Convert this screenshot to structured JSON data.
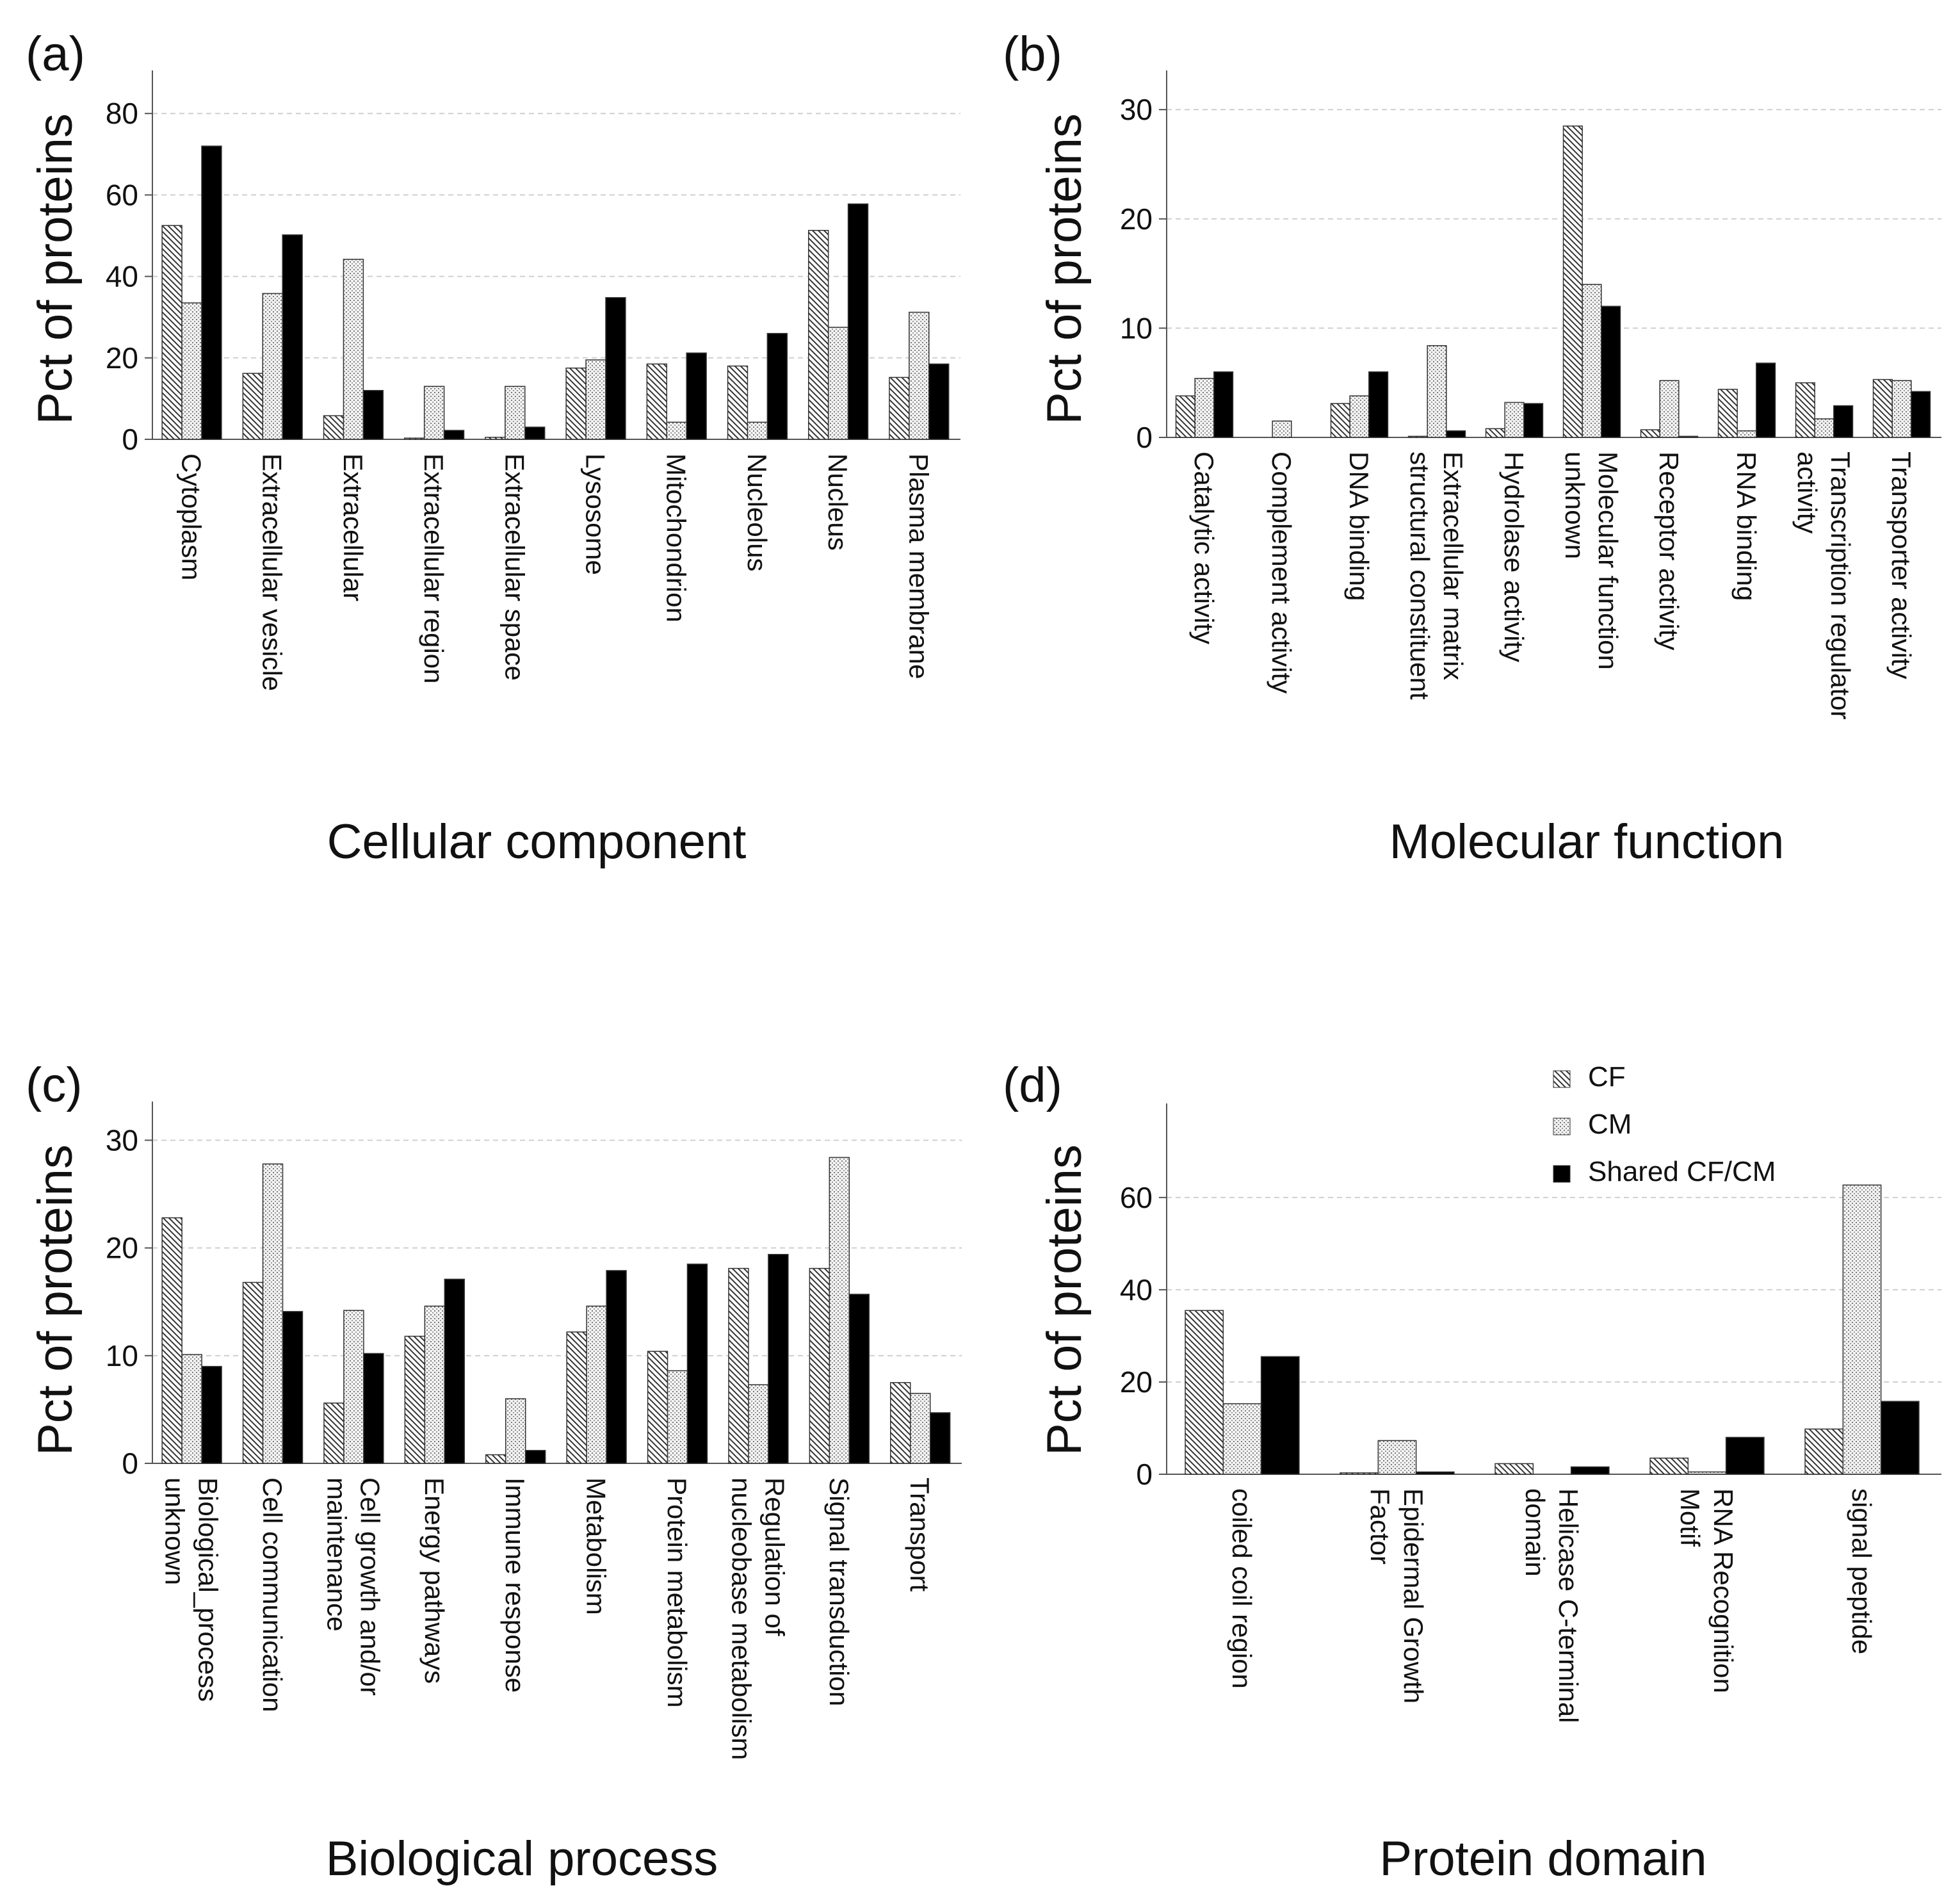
{
  "series_names": [
    "CF",
    "CM",
    "Shared CF/CM"
  ],
  "legend": {
    "items": [
      {
        "name": "CF",
        "pattern": "hatch"
      },
      {
        "name": "CM",
        "pattern": "dots"
      },
      {
        "name": "Shared CF/CM",
        "pattern": "solid"
      }
    ]
  },
  "colors": {
    "axis": "#555555",
    "grid": "#cfcfcf",
    "bar_edge": "#333333",
    "solid": "#000000",
    "ink": "#111111"
  },
  "chart_data": [
    {
      "panel": "(a)",
      "type": "bar",
      "title": "",
      "xlabel": "Cellular component",
      "ylabel": "Pct of proteins",
      "ylim": [
        0,
        89
      ],
      "yticks": [
        0,
        20,
        40,
        60,
        80
      ],
      "grid": true,
      "categories": [
        [
          "Cytoplasm"
        ],
        [
          "Extracellular vesicle"
        ],
        [
          "Extracellular"
        ],
        [
          "Extracellular region"
        ],
        [
          "Extracellular space"
        ],
        [
          "Lysosome"
        ],
        [
          "Mitochondrion"
        ],
        [
          "Nucleolus"
        ],
        [
          "Nucleus"
        ],
        [
          "Plasma membrane"
        ]
      ],
      "series": [
        {
          "name": "CF",
          "values": [
            52.5,
            16.2,
            5.8,
            0.3,
            0.5,
            17.5,
            18.5,
            18.0,
            51.3,
            15.2
          ]
        },
        {
          "name": "CM",
          "values": [
            33.5,
            35.8,
            44.2,
            13.0,
            13.0,
            19.5,
            4.2,
            4.2,
            27.5,
            31.2
          ]
        },
        {
          "name": "Shared CF/CM",
          "values": [
            72.0,
            50.2,
            12.0,
            2.2,
            3.0,
            34.8,
            21.2,
            26.0,
            57.8,
            18.5
          ]
        }
      ]
    },
    {
      "panel": "(b)",
      "type": "bar",
      "title": "",
      "xlabel": "Molecular function",
      "ylabel": "Pct of proteins",
      "ylim": [
        0,
        33
      ],
      "yticks": [
        0,
        10,
        20,
        30
      ],
      "grid": true,
      "categories": [
        [
          "Catalytic activity"
        ],
        [
          "Complement activity"
        ],
        [
          "DNA binding"
        ],
        [
          "Extracellular matrix",
          "structural constituent"
        ],
        [
          "Hydrolase activity"
        ],
        [
          "Molecular function",
          "unknown"
        ],
        [
          "Receptor activity"
        ],
        [
          "RNA binding"
        ],
        [
          "Transcription regulator",
          "activity"
        ],
        [
          "Transporter activity"
        ]
      ],
      "series": [
        {
          "name": "CF",
          "values": [
            3.8,
            0.0,
            3.1,
            0.1,
            0.8,
            28.5,
            0.7,
            4.4,
            5.0,
            5.3
          ]
        },
        {
          "name": "CM",
          "values": [
            5.4,
            1.5,
            3.8,
            8.4,
            3.2,
            14.0,
            5.2,
            0.6,
            1.7,
            5.2
          ]
        },
        {
          "name": "Shared CF/CM",
          "values": [
            6.0,
            0.0,
            6.0,
            0.6,
            3.1,
            12.0,
            0.1,
            6.8,
            2.9,
            4.2
          ]
        }
      ]
    },
    {
      "panel": "(c)",
      "type": "bar",
      "title": "",
      "xlabel": "Biological process",
      "ylabel": "Pct of proteins",
      "ylim": [
        0,
        33
      ],
      "yticks": [
        0,
        10,
        20,
        30
      ],
      "grid": true,
      "categories": [
        [
          "Biological_process",
          "unknown"
        ],
        [
          "Cell communication"
        ],
        [
          "Cell growth and/or",
          "maintenance"
        ],
        [
          "Energy pathways"
        ],
        [
          "Immune response"
        ],
        [
          "Metabolism"
        ],
        [
          "Protein metabolism"
        ],
        [
          "Regulation of",
          "nucleobase metabolism"
        ],
        [
          "Signal transduction"
        ],
        [
          "Transport"
        ]
      ],
      "series": [
        {
          "name": "CF",
          "values": [
            22.8,
            16.8,
            5.6,
            11.8,
            0.8,
            12.2,
            10.4,
            18.1,
            18.1,
            7.5
          ]
        },
        {
          "name": "CM",
          "values": [
            10.1,
            27.8,
            14.2,
            14.6,
            6.0,
            14.6,
            8.6,
            7.3,
            28.4,
            6.5
          ]
        },
        {
          "name": "Shared CF/CM",
          "values": [
            9.0,
            14.1,
            10.2,
            17.1,
            1.2,
            17.9,
            18.5,
            19.4,
            15.7,
            4.7
          ]
        }
      ]
    },
    {
      "panel": "(d)",
      "type": "bar",
      "title": "",
      "xlabel": "Protein domain",
      "ylabel": "Pct of proteins",
      "ylim": [
        0,
        79
      ],
      "yticks": [
        0,
        20,
        40,
        60
      ],
      "grid": true,
      "legend_position": "top-right",
      "categories": [
        [
          "coiled coil region"
        ],
        [
          "Epidermal Growth",
          "Factor"
        ],
        [
          "Helicase C-terminal",
          "domain"
        ],
        [
          "RNA Recognition",
          "Motif"
        ],
        [
          "signal peptide"
        ]
      ],
      "series": [
        {
          "name": "CF",
          "values": [
            35.5,
            0.3,
            2.3,
            3.5,
            9.8
          ]
        },
        {
          "name": "CM",
          "values": [
            15.3,
            7.3,
            0.0,
            0.5,
            62.7
          ]
        },
        {
          "name": "Shared CF/CM",
          "values": [
            25.5,
            0.5,
            1.6,
            8.0,
            15.8
          ]
        }
      ]
    }
  ]
}
